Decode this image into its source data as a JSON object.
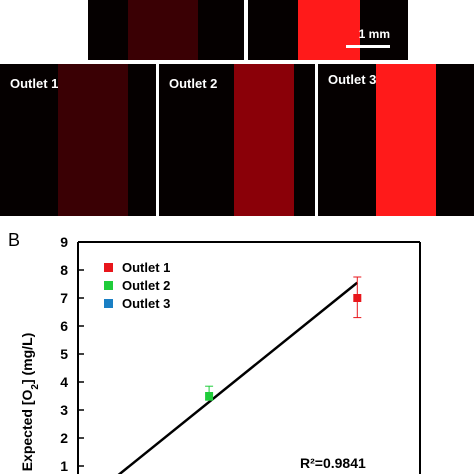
{
  "images": {
    "scale_bar_label": "1 mm",
    "outlet_labels": [
      "Outlet 1",
      "Outlet 2",
      "Outlet 3"
    ],
    "colors": {
      "background": "#050000",
      "faint": "#3a0004",
      "medium": "#8a0008",
      "bright": "#ff1a1a"
    }
  },
  "chart_data": {
    "type": "scatter",
    "panel_label": "B",
    "ylabel": "Expected [O2] (mg/L)",
    "ylim": [
      0,
      9
    ],
    "yticks": [
      1,
      2,
      3,
      4,
      5,
      6,
      7,
      8,
      9
    ],
    "series": [
      {
        "name": "Outlet 1",
        "color": "#e8161b",
        "points": [
          {
            "x": 7.35,
            "y": 7.0,
            "err_low": 6.3,
            "err_high": 7.75
          }
        ]
      },
      {
        "name": "Outlet 2",
        "color": "#1fcc3a",
        "points": [
          {
            "x": 3.45,
            "y": 3.5,
            "err_low": 3.35,
            "err_high": 3.85
          }
        ]
      },
      {
        "name": "Outlet 3",
        "color": "#1a7fc4",
        "points": []
      }
    ],
    "fit_line": {
      "x": [
        0.9,
        7.35
      ],
      "y": [
        0.5,
        7.55
      ]
    },
    "r2_label": "R²=0.9841"
  }
}
